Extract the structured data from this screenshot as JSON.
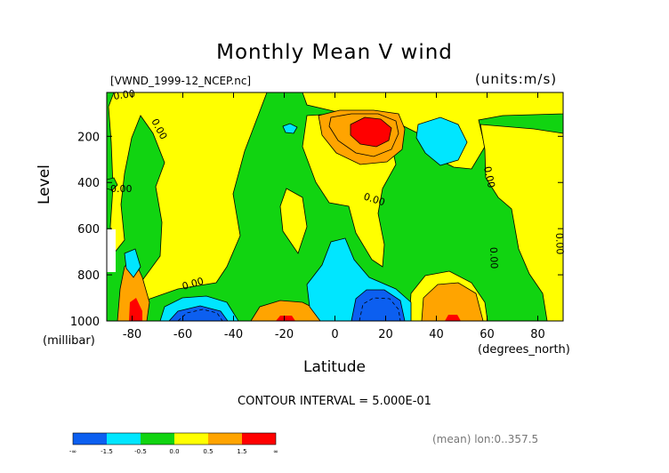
{
  "chart_data": {
    "type": "heatmap",
    "title": "Monthly Mean V wind",
    "file_label": "[VWND_1999-12_NCEP.nc]",
    "units_label": "(units:m/s)",
    "xlabel": "Latitude",
    "x_unit": "(degrees_north)",
    "ylabel": "Level",
    "y_unit": "(millibar)",
    "xlim": [
      -90,
      90
    ],
    "ylim": [
      1000,
      10
    ],
    "y_reversed": true,
    "x_ticks": [
      "-80",
      "-60",
      "-40",
      "-20",
      "0",
      "20",
      "40",
      "60",
      "80"
    ],
    "x_tick_values": [
      -80,
      -60,
      -40,
      -20,
      0,
      20,
      40,
      60,
      80
    ],
    "y_ticks": [
      "200",
      "400",
      "600",
      "800",
      "1000"
    ],
    "y_tick_values": [
      200,
      400,
      600,
      800,
      1000
    ],
    "contour_interval": "CONTOUR INTERVAL = 5.000E-01",
    "contour_labels": [
      "0.00",
      "0.00",
      "0.00",
      "0.00",
      "0.00",
      "0.00",
      "0.00",
      "0.00"
    ],
    "colorbar": {
      "tick_labels": [
        "-∞",
        "-1.5",
        "-0.5",
        "0.0",
        "0.5",
        "1.5",
        "∞"
      ],
      "colors": [
        "#0c5ff0",
        "#00e6ff",
        "#11d411",
        "#ffff00",
        "#ffa400",
        "#ff0000"
      ]
    },
    "footer_note": "(mean) lon:0..357.5",
    "features": [
      {
        "kind": "max",
        "lat": 15,
        "level": 170,
        "value": 2.0
      },
      {
        "kind": "min",
        "lat": 58,
        "level": 250,
        "value": -1.0
      },
      {
        "kind": "min",
        "lat": -60,
        "level": 1000,
        "value": -2.0
      },
      {
        "kind": "max",
        "lat": -80,
        "level": 950,
        "value": 1.8
      },
      {
        "kind": "max",
        "lat": -20,
        "level": 1000,
        "value": 2.0
      },
      {
        "kind": "min",
        "lat": 15,
        "level": 960,
        "value": -2.2
      },
      {
        "kind": "max",
        "lat": 45,
        "level": 1000,
        "value": 1.8
      }
    ]
  }
}
